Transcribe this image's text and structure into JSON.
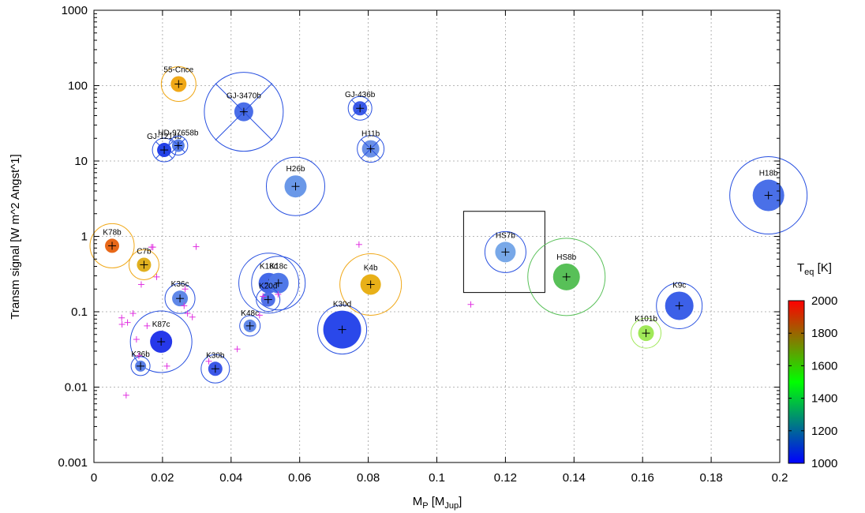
{
  "chart_data": {
    "type": "scatter",
    "title": "",
    "xlabel": {
      "main": "M",
      "sub1": "P",
      "mid": " [M",
      "sub2": "Jup",
      "end": "]"
    },
    "ylabel": "Transm signal [W m^2 Angst^1]",
    "xlim": [
      0,
      0.2
    ],
    "ylim": [
      0.001,
      1000
    ],
    "yscale": "log",
    "grid": true,
    "x_ticks": [
      "0",
      "0.02",
      "0.04",
      "0.06",
      "0.08",
      "0.1",
      "0.12",
      "0.14",
      "0.16",
      "0.18",
      "0.2"
    ],
    "y_ticks": [
      "0.001",
      "0.01",
      "0.1",
      "1",
      "10",
      "100",
      "1000"
    ],
    "colorbar": {
      "title": "T",
      "title_sub": "eq",
      "title_unit": " [K]",
      "range": [
        1000,
        2000
      ],
      "ticks": [
        "1000",
        "1200",
        "1400",
        "1600",
        "1800",
        "2000"
      ],
      "colors": [
        "#0000ff",
        "#00ff00",
        "#ff0000"
      ]
    },
    "planets": [
      {
        "label": "55-Cnce",
        "x": 0.0247,
        "y": 105,
        "color": "#f0a818",
        "outline": "#f0a818",
        "ring": true,
        "cross": false
      },
      {
        "label": "GJ-3470b",
        "x": 0.0437,
        "y": 45,
        "color": "#4a6ee8",
        "outline": "#2850e0",
        "ring": true,
        "cross": true
      },
      {
        "label": "GJ-436b",
        "x": 0.0776,
        "y": 50,
        "color": "#3c5ae8",
        "outline": "#2850e0",
        "ring": true,
        "cross": true
      },
      {
        "label": "GJ-1214b",
        "x": 0.0205,
        "y": 14,
        "color": "#2440e8",
        "outline": "#2850e0",
        "ring": true,
        "cross": true
      },
      {
        "label": "HD-97658b",
        "x": 0.0246,
        "y": 16,
        "color": "#5a80e8",
        "outline": "#2850e0",
        "ring": true,
        "cross": true
      },
      {
        "label": "H11b",
        "x": 0.0807,
        "y": 14.5,
        "color": "#6a90e8",
        "outline": "#2850e0",
        "ring": true,
        "cross": true
      },
      {
        "label": "H26b",
        "x": 0.0588,
        "y": 4.6,
        "color": "#6a98e8",
        "outline": "#2850e0",
        "ring": true,
        "cross": false
      },
      {
        "label": "H18b",
        "x": 0.1967,
        "y": 3.5,
        "color": "#4a70e8",
        "outline": "#2850e0",
        "ring": true,
        "cross": false
      },
      {
        "label": "K78b",
        "x": 0.0053,
        "y": 0.75,
        "color": "#e86818",
        "outline": "#f0a818",
        "ring": true,
        "cross": false
      },
      {
        "label": "C7b",
        "x": 0.0146,
        "y": 0.42,
        "color": "#e0b020",
        "outline": "#f0a818",
        "ring": true,
        "cross": false
      },
      {
        "label": "HS7b",
        "x": 0.12,
        "y": 0.62,
        "color": "#78a8e8",
        "outline": "#2850e0",
        "ring": true,
        "cross": false
      },
      {
        "label": "HS8b",
        "x": 0.1378,
        "y": 0.29,
        "color": "#58c058",
        "outline": "#58c058",
        "ring": true,
        "cross": false
      },
      {
        "label": "K4b",
        "x": 0.0807,
        "y": 0.23,
        "color": "#e8b018",
        "outline": "#f0a818",
        "ring": true,
        "cross": false
      },
      {
        "label": "K18d",
        "x": 0.051,
        "y": 0.24,
        "color": "#4468e8",
        "outline": "#2850e0",
        "ring": true,
        "cross": false
      },
      {
        "label": "K18c",
        "x": 0.0538,
        "y": 0.24,
        "color": "#5078e8",
        "outline": "#2850e0",
        "ring": true,
        "cross": false
      },
      {
        "label": "K20d",
        "x": 0.0508,
        "y": 0.145,
        "color": "#5070e8",
        "outline": "#2850e0",
        "ring": true,
        "cross": false
      },
      {
        "label": "K36c",
        "x": 0.0251,
        "y": 0.15,
        "color": "#6088e8",
        "outline": "#2850e0",
        "ring": true,
        "cross": false
      },
      {
        "label": "K9c",
        "x": 0.1707,
        "y": 0.12,
        "color": "#3c60e8",
        "outline": "#2850e0",
        "ring": true,
        "cross": false
      },
      {
        "label": "K48c",
        "x": 0.0455,
        "y": 0.065,
        "color": "#6088e8",
        "outline": "#2850e0",
        "ring": true,
        "cross": false
      },
      {
        "label": "K30d",
        "x": 0.0724,
        "y": 0.058,
        "color": "#2a48ea",
        "outline": "#2850e0",
        "ring": true,
        "cross": false
      },
      {
        "label": "K101b",
        "x": 0.161,
        "y": 0.052,
        "color": "#a0e858",
        "outline": "#a0e858",
        "ring": true,
        "cross": false
      },
      {
        "label": "K87c",
        "x": 0.0196,
        "y": 0.04,
        "color": "#2638ea",
        "outline": "#2850e0",
        "ring": true,
        "cross": false
      },
      {
        "label": "K36b",
        "x": 0.0136,
        "y": 0.019,
        "color": "#5a80e8",
        "outline": "#2850e0",
        "ring": true,
        "cross": false
      },
      {
        "label": "K30b",
        "x": 0.0354,
        "y": 0.0175,
        "color": "#3c58e8",
        "outline": "#2850e0",
        "ring": true,
        "cross": false
      }
    ],
    "other_planets": [
      [
        0.0172,
        0.72
      ],
      [
        0.0183,
        0.29
      ],
      [
        0.0138,
        0.23
      ],
      [
        0.0266,
        0.2
      ],
      [
        0.0298,
        0.73
      ],
      [
        0.0168,
        0.72
      ],
      [
        0.0273,
        0.095
      ],
      [
        0.0287,
        0.085
      ],
      [
        0.0263,
        0.12
      ],
      [
        0.0114,
        0.095
      ],
      [
        0.0098,
        0.072
      ],
      [
        0.0082,
        0.068
      ],
      [
        0.0081,
        0.083
      ],
      [
        0.0124,
        0.043
      ],
      [
        0.0131,
        0.026
      ],
      [
        0.0213,
        0.019
      ],
      [
        0.0094,
        0.0078
      ],
      [
        0.0335,
        0.022
      ],
      [
        0.0418,
        0.032
      ],
      [
        0.0773,
        0.78
      ],
      [
        0.0493,
        0.16
      ],
      [
        0.0537,
        0.17
      ],
      [
        0.1099,
        0.125
      ],
      [
        0.0483,
        0.09
      ],
      [
        0.0155,
        0.065
      ]
    ],
    "highlight_box": {
      "x": [
        0.1078,
        0.1315
      ],
      "y": [
        0.18,
        2.15
      ]
    }
  }
}
